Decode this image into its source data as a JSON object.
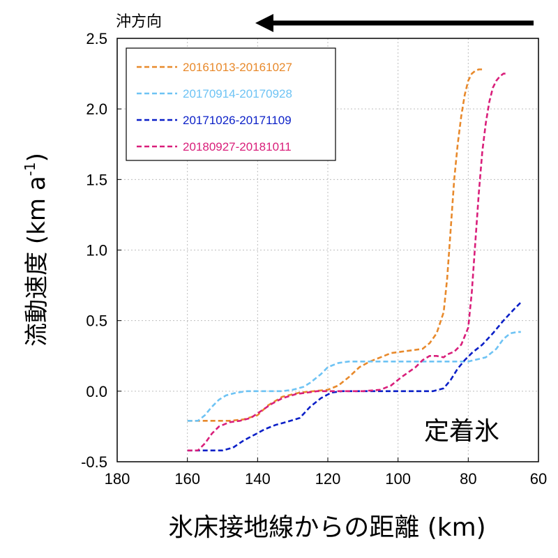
{
  "chart_data": {
    "type": "line",
    "xlabel": "氷床接地線からの距離 (km)",
    "ylabel": "流動速度 (km a",
    "ylabel_sup": "-1",
    "ylabel_close": ")",
    "xlim": [
      180,
      60
    ],
    "ylim": [
      -0.5,
      2.5
    ],
    "x_ticks": [
      180,
      160,
      140,
      120,
      100,
      80,
      60
    ],
    "x_tick_labels": [
      "180",
      "160",
      "140",
      "120",
      "100",
      "80",
      "60"
    ],
    "y_ticks": [
      -0.5,
      0.0,
      0.5,
      1.0,
      1.5,
      2.0,
      2.5
    ],
    "y_tick_labels": [
      "-0.5",
      "0.0",
      "0.5",
      "1.0",
      "1.5",
      "2.0",
      "2.5"
    ],
    "grid": true,
    "legend_position": "top-left",
    "direction_label": "沖方向",
    "annotation": "定着氷",
    "series": [
      {
        "name": "20161013-20161027",
        "color": "#E8892B",
        "x": [
          160,
          148,
          144,
          140,
          137,
          133,
          128,
          124,
          120,
          117,
          114,
          111,
          108,
          105,
          102,
          99,
          96,
          93,
          91,
          89,
          87,
          86,
          85,
          84,
          83,
          82,
          81,
          80,
          79,
          78,
          77,
          76
        ],
        "y": [
          -0.21,
          -0.21,
          -0.2,
          -0.17,
          -0.1,
          -0.04,
          -0.01,
          0.0,
          0.01,
          0.04,
          0.1,
          0.17,
          0.21,
          0.24,
          0.27,
          0.28,
          0.29,
          0.3,
          0.34,
          0.41,
          0.56,
          0.8,
          1.15,
          1.5,
          1.75,
          1.95,
          2.1,
          2.2,
          2.25,
          2.27,
          2.28,
          2.28
        ]
      },
      {
        "name": "20170914-20170928",
        "color": "#6EC3F4",
        "x": [
          160,
          157,
          155,
          153,
          151,
          149,
          146,
          143,
          140,
          136,
          133,
          130,
          127,
          125,
          122,
          120,
          117,
          114,
          110,
          105,
          100,
          95,
          90,
          85,
          80,
          75,
          72,
          70,
          68,
          66,
          65
        ],
        "y": [
          -0.21,
          -0.21,
          -0.17,
          -0.11,
          -0.06,
          -0.03,
          -0.01,
          0.0,
          0.0,
          0.0,
          0.0,
          0.01,
          0.03,
          0.06,
          0.12,
          0.17,
          0.2,
          0.21,
          0.21,
          0.21,
          0.21,
          0.21,
          0.21,
          0.21,
          0.21,
          0.24,
          0.3,
          0.37,
          0.41,
          0.42,
          0.42
        ]
      },
      {
        "name": "20171026-20171109",
        "color": "#0A1FC7",
        "x": [
          160,
          155,
          150,
          147,
          144,
          141,
          138,
          135,
          132,
          128,
          125,
          122,
          119,
          116,
          110,
          100,
          95,
          90,
          87,
          85,
          83,
          81,
          79,
          76,
          73,
          70,
          67,
          65
        ],
        "y": [
          -0.42,
          -0.42,
          -0.42,
          -0.4,
          -0.35,
          -0.31,
          -0.27,
          -0.24,
          -0.22,
          -0.19,
          -0.11,
          -0.05,
          -0.01,
          0.0,
          0.0,
          0.0,
          0.0,
          0.0,
          0.02,
          0.08,
          0.16,
          0.22,
          0.27,
          0.33,
          0.41,
          0.5,
          0.58,
          0.63
        ]
      },
      {
        "name": "20180927-20181011",
        "color": "#D91E7A",
        "x": [
          160,
          157,
          155,
          153,
          151,
          148,
          145,
          142,
          139,
          136,
          133,
          129,
          126,
          123,
          120,
          117,
          114,
          110,
          105,
          102,
          99,
          95,
          93,
          91,
          89,
          87,
          86,
          84,
          82,
          80,
          79,
          78,
          77,
          76,
          75,
          74,
          73,
          72,
          71,
          70,
          69
        ],
        "y": [
          -0.42,
          -0.42,
          -0.37,
          -0.3,
          -0.25,
          -0.22,
          -0.21,
          -0.19,
          -0.14,
          -0.09,
          -0.05,
          -0.02,
          -0.01,
          0.0,
          0.0,
          0.0,
          0.0,
          0.0,
          0.01,
          0.04,
          0.1,
          0.17,
          0.22,
          0.25,
          0.25,
          0.24,
          0.26,
          0.28,
          0.33,
          0.45,
          0.7,
          1.05,
          1.4,
          1.7,
          1.9,
          2.05,
          2.15,
          2.2,
          2.23,
          2.25,
          2.25
        ]
      }
    ]
  }
}
